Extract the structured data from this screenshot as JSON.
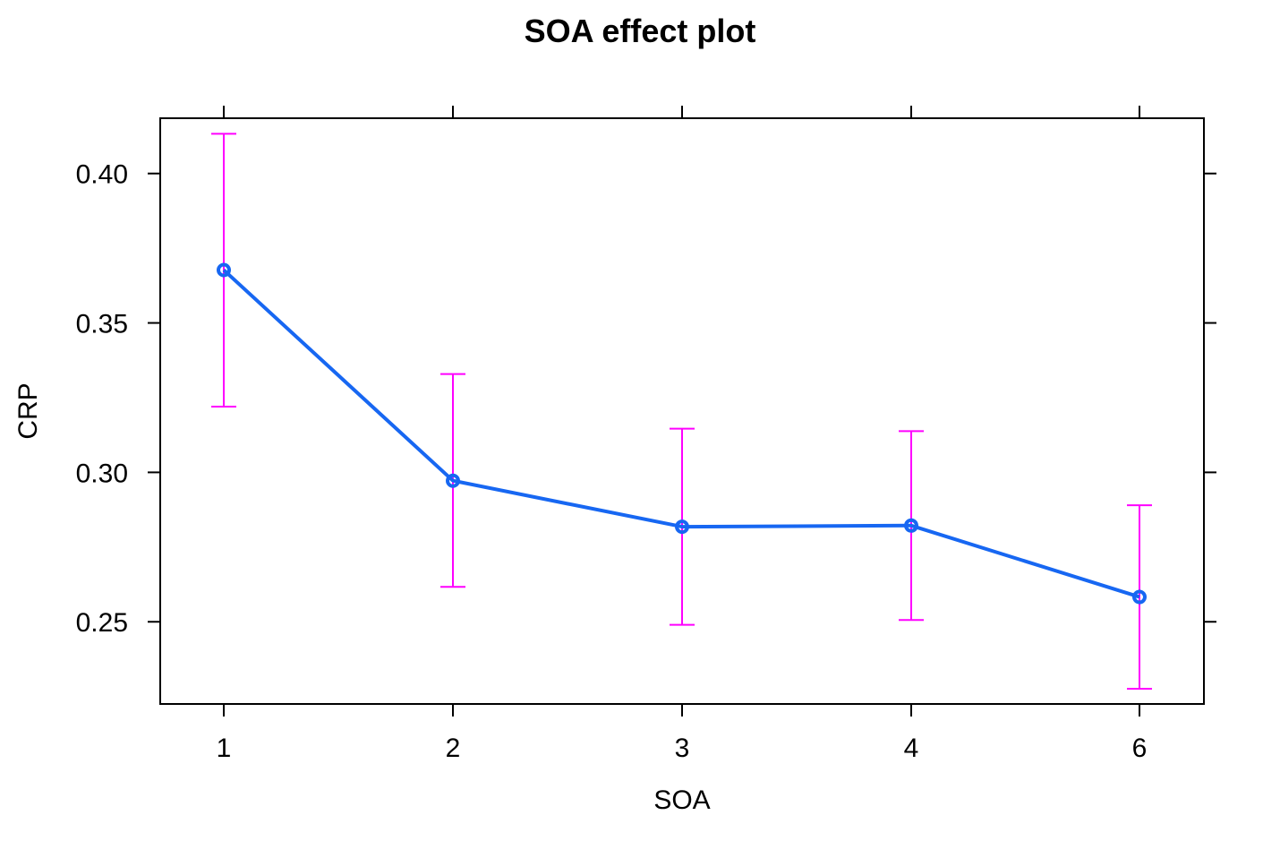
{
  "chart_data": {
    "type": "line",
    "title": "SOA effect plot",
    "xlabel": "SOA",
    "ylabel": "CRP",
    "categories": [
      "1",
      "2",
      "3",
      "4",
      "6"
    ],
    "y_ticks": [
      "0.25",
      "0.30",
      "0.35",
      "0.40"
    ],
    "ylim": [
      0.2225,
      0.4185
    ],
    "grid": false,
    "legend": "none",
    "series": [
      {
        "values": [
          0.3677,
          0.2972,
          0.2818,
          0.2822,
          0.2583
        ],
        "lower": [
          0.322,
          0.2617,
          0.249,
          0.2506,
          0.2276
        ],
        "upper": [
          0.4133,
          0.3329,
          0.3146,
          0.3138,
          0.289
        ]
      }
    ],
    "colors": {
      "line": "#1767f2",
      "error_bars": "#ff00ff"
    }
  }
}
